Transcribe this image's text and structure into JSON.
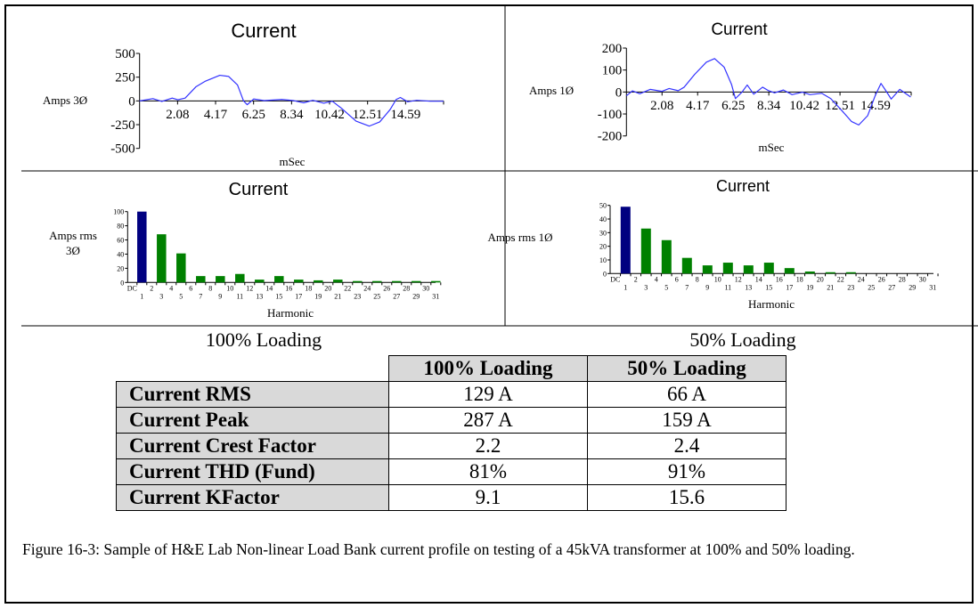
{
  "panel_labels": {
    "left": "100% Loading",
    "right": "50% Loading"
  },
  "chart_data": [
    {
      "type": "line",
      "title": "Current",
      "xlabel": "mSec",
      "ylabel": "Amps  3Ø",
      "xticks": [
        "2.08",
        "4.17",
        "6.25",
        "8.34",
        "10.42",
        "12.51",
        "14.59"
      ],
      "yticks": [
        500,
        250,
        0,
        -250,
        -500
      ],
      "ylim": [
        -500,
        500
      ],
      "xlim": [
        0,
        16.67
      ],
      "color": "#3333ff",
      "x": [
        0,
        0.73,
        1.22,
        1.79,
        2.1,
        2.5,
        3.1,
        3.58,
        4.4,
        4.88,
        5.37,
        5.7,
        5.9,
        6.26,
        6.83,
        7.8,
        8.45,
        9.0,
        9.5,
        10.1,
        10.57,
        11.06,
        11.87,
        12.6,
        13.17,
        13.74,
        14.07,
        14.3,
        14.7,
        15.2,
        15.93,
        16.67
      ],
      "y": [
        0,
        24,
        -6,
        30,
        12,
        30,
        150,
        205,
        270,
        258,
        168,
        0,
        -40,
        20,
        3,
        15,
        3,
        -20,
        6,
        -24,
        -3,
        -76,
        -213,
        -265,
        -221,
        -91,
        15,
        36,
        -9,
        6,
        -3,
        -3
      ]
    },
    {
      "type": "line",
      "title": "Current",
      "xlabel": "mSec",
      "ylabel": "Amps  1Ø",
      "xticks": [
        "2.08",
        "4.17",
        "6.25",
        "8.34",
        "10.42",
        "12.51",
        "14.59"
      ],
      "yticks": [
        200,
        100,
        0,
        -100,
        -200
      ],
      "ylim": [
        -200,
        200
      ],
      "xlim": [
        0,
        16.67
      ],
      "color": "#3333ff",
      "x": [
        0,
        0.35,
        0.78,
        1.39,
        2.08,
        2.5,
        3.03,
        3.38,
        3.99,
        4.68,
        5.16,
        5.72,
        6.15,
        6.38,
        6.76,
        7.07,
        7.45,
        7.97,
        8.32,
        8.67,
        9.19,
        9.7,
        10.3,
        10.75,
        11.44,
        11.96,
        12.65,
        13.17,
        13.6,
        14.12,
        14.56,
        14.9,
        15.16,
        15.5,
        16.0,
        16.64
      ],
      "y": [
        -17,
        5,
        -8,
        12,
        3,
        16,
        6,
        22,
        80,
        136,
        152,
        113,
        35,
        -30,
        -1,
        32,
        -10,
        22,
        6,
        -4,
        9,
        -12,
        -1,
        -12,
        -6,
        -30,
        -88,
        -134,
        -150,
        -108,
        -17,
        39,
        9,
        -32,
        12,
        -23
      ]
    },
    {
      "type": "bar",
      "title": "Current",
      "xlabel": "Harmonic",
      "ylabel": [
        "Amps rms",
        "3Ø"
      ],
      "categories": [
        1,
        3,
        5,
        7,
        9,
        11,
        13,
        15,
        17,
        19,
        21,
        23,
        25,
        27,
        29,
        31
      ],
      "values": [
        100,
        68,
        41,
        9,
        9,
        12,
        4,
        9,
        4,
        3,
        4,
        2,
        2,
        2,
        2,
        2
      ],
      "ylim": [
        0,
        100
      ],
      "yticks": [
        0,
        20,
        40,
        60,
        80,
        100
      ],
      "xtick_labels_top": [
        "DC",
        "2",
        "4",
        "6",
        "8",
        "10",
        "12",
        "14",
        "16",
        "18",
        "20",
        "22",
        "24",
        "26",
        "28",
        "30"
      ],
      "xtick_labels_bottom": [
        "1",
        "3",
        "5",
        "7",
        "9",
        "11",
        "13",
        "15",
        "17",
        "19",
        "21",
        "23",
        "25",
        "27",
        "29",
        "31"
      ],
      "fundamental_color": "#000080",
      "harmonic_color": "#008000"
    },
    {
      "type": "bar",
      "title": "Current",
      "xlabel": "Harmonic",
      "ylabel": [
        "Amps rms 1Ø"
      ],
      "categories": [
        1,
        3,
        5,
        7,
        9,
        11,
        13,
        15,
        17,
        19,
        21,
        23,
        25,
        27,
        29,
        31
      ],
      "values": [
        49,
        33,
        24.5,
        11.5,
        6,
        8,
        6,
        8,
        4,
        1.5,
        1,
        1,
        0,
        0,
        0,
        0
      ],
      "ylim": [
        0,
        50
      ],
      "yticks": [
        0,
        10,
        20,
        30,
        40,
        50
      ],
      "xtick_labels_top": [
        "DC",
        "2",
        "4",
        "6",
        "8",
        "10",
        "12",
        "14",
        "16",
        "18",
        "20",
        "22",
        "24",
        "26",
        "28",
        "30"
      ],
      "xtick_labels_bottom": [
        "1",
        "3",
        "5",
        "7",
        "9",
        "11",
        "13",
        "15",
        "17",
        "19",
        "21",
        "23",
        "25",
        "27",
        "29",
        "31"
      ],
      "fundamental_color": "#000080",
      "harmonic_color": "#008000"
    }
  ],
  "table": {
    "headers": [
      "100% Loading",
      "50% Loading"
    ],
    "rows": [
      {
        "label": "Current RMS",
        "full": "129 A",
        "half": "66 A"
      },
      {
        "label": "Current Peak",
        "full": "287 A",
        "half": "159 A"
      },
      {
        "label": "Current Crest Factor",
        "full": "2.2",
        "half": "2.4"
      },
      {
        "label": "Current THD (Fund)",
        "full": "81%",
        "half": "91%"
      },
      {
        "label": "Current KFactor",
        "full": "9.1",
        "half": "15.6"
      }
    ]
  },
  "caption": "Figure 16-3:  Sample of H&E Lab Non-linear Load Bank current profile on testing of a 45kVA transformer at 100% and 50% loading."
}
